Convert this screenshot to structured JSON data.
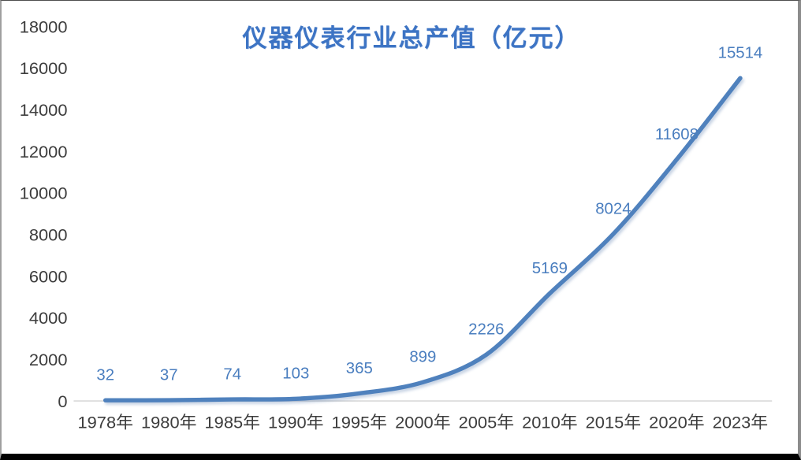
{
  "chart_data": {
    "type": "line",
    "title": "仪器仪表行业总产值（亿元）",
    "categories": [
      "1978年",
      "1980年",
      "1985年",
      "1990年",
      "1995年",
      "2000年",
      "2005年",
      "2010年",
      "2015年",
      "2020年",
      "2023年"
    ],
    "values": [
      32,
      37,
      74,
      103,
      365,
      899,
      2226,
      5169,
      8024,
      11608,
      15514
    ],
    "xlabel": "",
    "ylabel": "",
    "ylim": [
      0,
      18000
    ],
    "ytick_step": 2000,
    "ytick_labels": [
      "0",
      "2000",
      "4000",
      "6000",
      "8000",
      "10000",
      "12000",
      "14000",
      "16000",
      "18000"
    ],
    "grid": false,
    "legend": false,
    "smooth": true,
    "data_labels_position": "above",
    "line_color": "#4f81bd",
    "data_label_color": "#4a7ebf",
    "title_color": "#3d74c4",
    "axis_text_color": "#3d3d3d",
    "axis_line_color": "#d9d9d9"
  }
}
